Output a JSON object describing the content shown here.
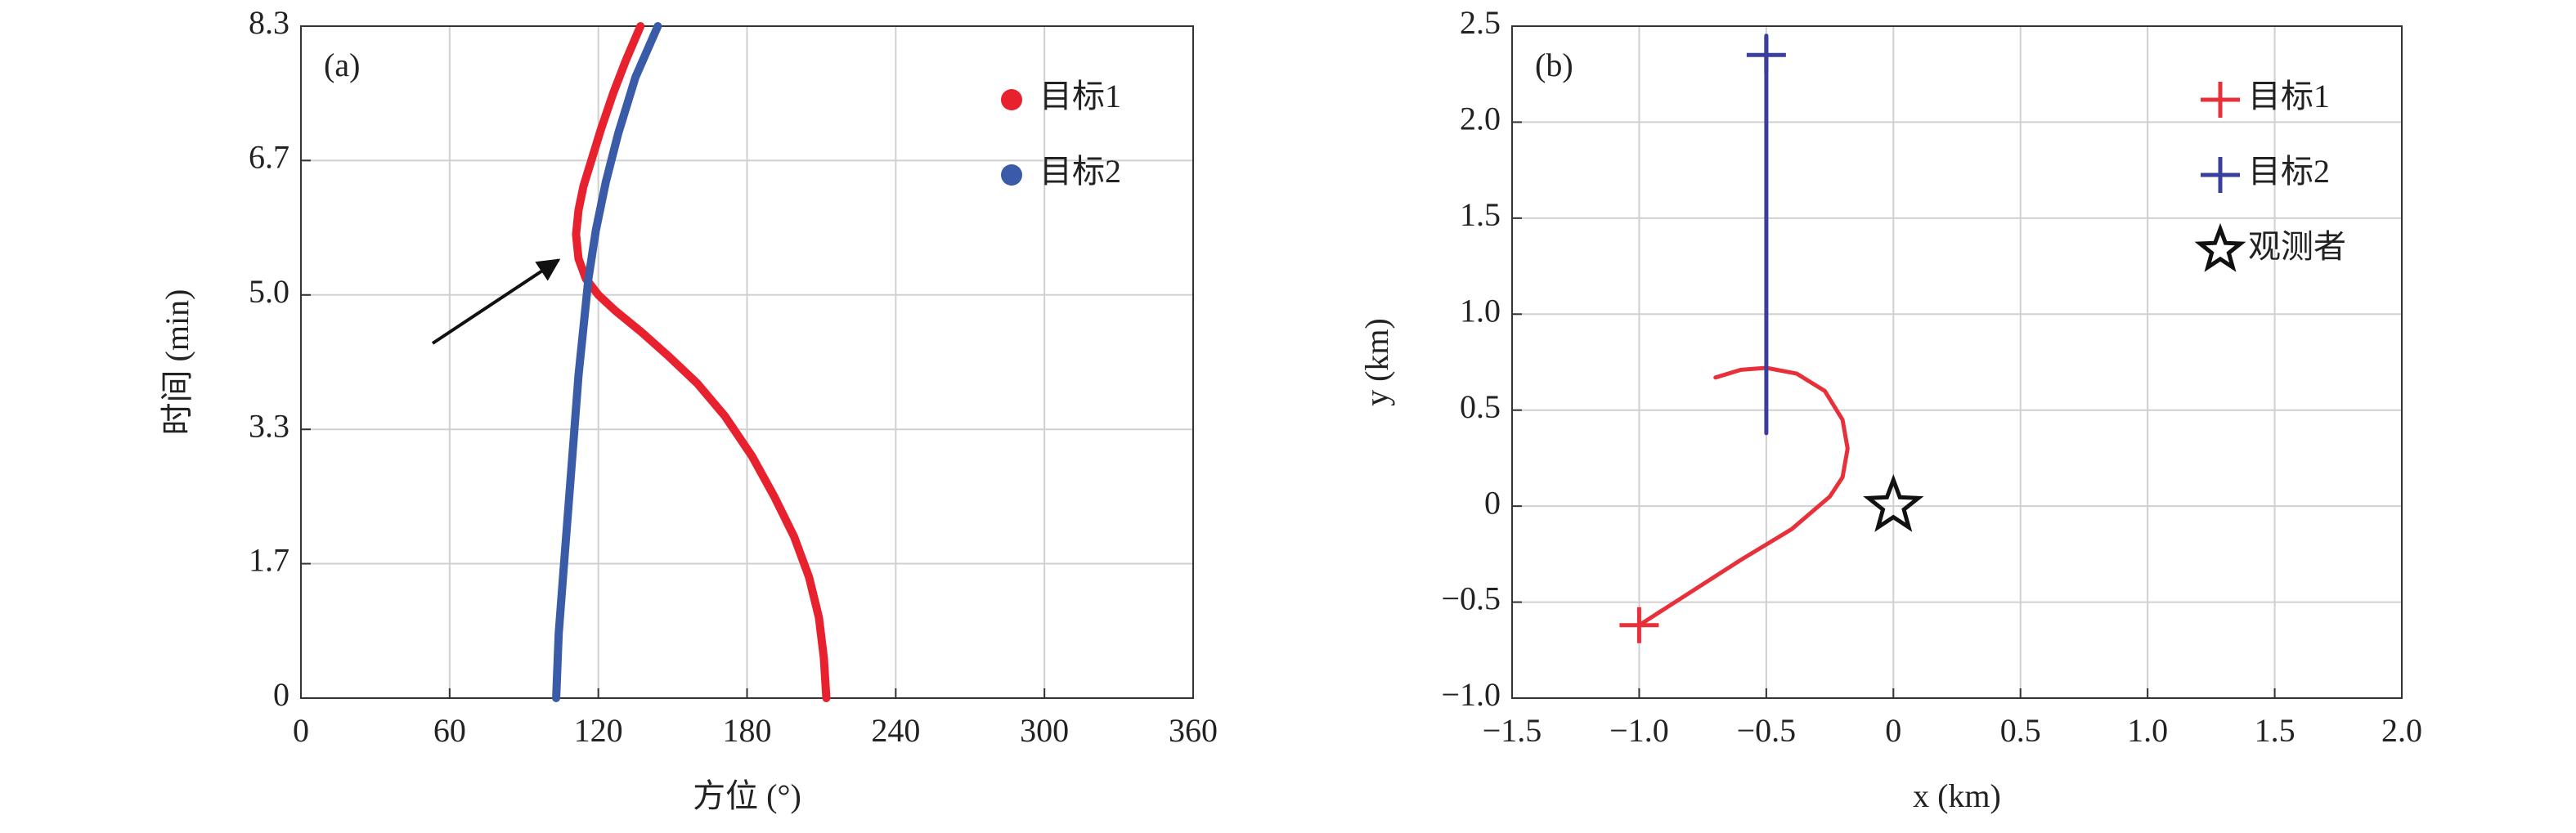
{
  "chart_data": [
    {
      "type": "line",
      "panel_label": "(a)",
      "xlabel": "方位 (°)",
      "ylabel": "时间 (min)",
      "xlim": [
        0,
        360
      ],
      "xticks": [
        0,
        60,
        120,
        180,
        240,
        300,
        360
      ],
      "ylim": [
        0,
        8.333
      ],
      "yticks": [
        0,
        {
          "value": 1.667,
          "label": "1.7"
        },
        {
          "value": 3.333,
          "label": "3.3"
        },
        {
          "value": 5,
          "label": "5.0"
        },
        {
          "value": 6.667,
          "label": "6.7"
        },
        {
          "value": 8.333,
          "label": "8.3"
        }
      ],
      "grid": true,
      "legend": "upper right",
      "series": [
        {
          "name": "目标1",
          "color": "#e8212e",
          "x": [
            212,
            211,
            209,
            205,
            199,
            191,
            182,
            171,
            160,
            148,
            137,
            127,
            120,
            115,
            112,
            111,
            112,
            114,
            117,
            121,
            126,
            131,
            137
          ],
          "y": [
            0,
            0.5,
            1.0,
            1.5,
            2.0,
            2.5,
            3.0,
            3.5,
            3.9,
            4.25,
            4.55,
            4.8,
            5.0,
            5.2,
            5.45,
            5.75,
            6.05,
            6.35,
            6.65,
            7.05,
            7.5,
            7.9,
            8.333
          ]
        },
        {
          "name": "目标2",
          "color": "#3a5ba8",
          "x": [
            103,
            104,
            106,
            108,
            110,
            112,
            114,
            116,
            119,
            123,
            128,
            135,
            144
          ],
          "y": [
            0,
            0.8,
            1.6,
            2.4,
            3.2,
            4.0,
            4.6,
            5.2,
            5.8,
            6.4,
            7.0,
            7.7,
            8.333
          ]
        }
      ]
    },
    {
      "type": "line",
      "panel_label": "(b)",
      "xlabel": "x (km)",
      "ylabel": "y (km)",
      "xlim": [
        -1.5,
        2.0
      ],
      "xticks": [
        {
          "value": -1.5,
          "label": "−1.5"
        },
        {
          "value": -1.0,
          "label": "−1.0"
        },
        {
          "value": -0.5,
          "label": "−0.5"
        },
        0,
        {
          "value": 0.5,
          "label": "0.5"
        },
        {
          "value": 1.0,
          "label": "1.0"
        },
        {
          "value": 1.5,
          "label": "1.5"
        },
        {
          "value": 2.0,
          "label": "2.0"
        }
      ],
      "ylim": [
        -1.0,
        2.5
      ],
      "yticks": [
        {
          "value": -1.0,
          "label": "−1.0"
        },
        {
          "value": -0.5,
          "label": "−0.5"
        },
        0,
        {
          "value": 0.5,
          "label": "0.5"
        },
        {
          "value": 1.0,
          "label": "1.0"
        },
        {
          "value": 1.5,
          "label": "1.5"
        },
        {
          "value": 2.0,
          "label": "2.0"
        },
        {
          "value": 2.5,
          "label": "2.5"
        }
      ],
      "grid": true,
      "legend": "upper right",
      "series": [
        {
          "name": "目标1",
          "color": "#e8303a",
          "x": [
            -1.0,
            -0.8,
            -0.6,
            -0.4,
            -0.25,
            -0.2,
            -0.18,
            -0.2,
            -0.27,
            -0.38,
            -0.5,
            -0.6,
            -0.7
          ],
          "y": [
            -0.62,
            -0.45,
            -0.28,
            -0.12,
            0.05,
            0.15,
            0.3,
            0.45,
            0.6,
            0.69,
            0.72,
            0.71,
            0.67
          ],
          "start": {
            "x": -1.0,
            "y": -0.62
          }
        },
        {
          "name": "目标2",
          "color": "#3b3f9c",
          "x": [
            -0.5,
            -0.5
          ],
          "y": [
            0.38,
            2.45
          ],
          "start": {
            "x": -0.5,
            "y": 2.35
          }
        }
      ],
      "observer": {
        "name": "观测者",
        "x": 0,
        "y": 0
      }
    }
  ]
}
